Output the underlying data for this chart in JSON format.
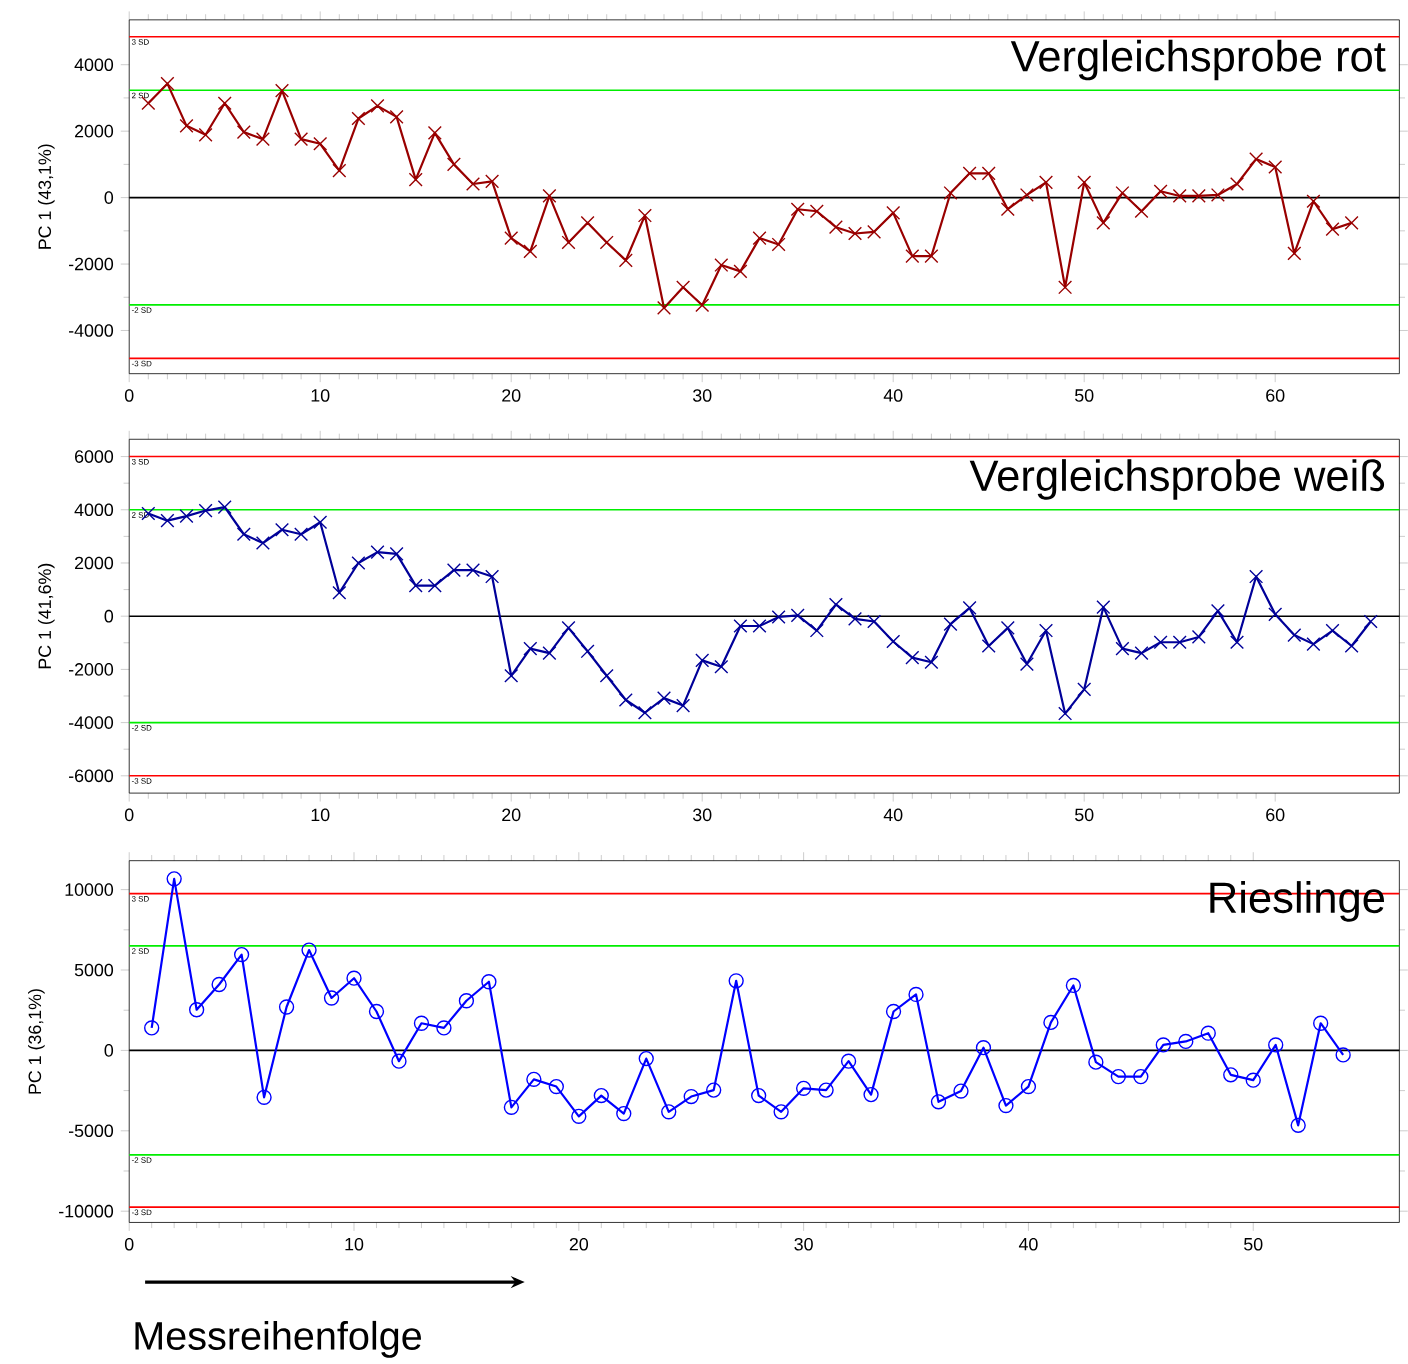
{
  "chart_data": [
    {
      "type": "line",
      "title": "Vergleichsprobe rot",
      "ylabel": "PC 1 (43,1%)",
      "marker": "cross",
      "line_style": "solid",
      "x": [
        1,
        2,
        3,
        4,
        5,
        6,
        7,
        8,
        9,
        10,
        11,
        12,
        13,
        14,
        15,
        16,
        17,
        18,
        19,
        20,
        21,
        22,
        23,
        24,
        25,
        26,
        27,
        28,
        29,
        30,
        31,
        32,
        33,
        34,
        35,
        36,
        37,
        38,
        39,
        40,
        41,
        42,
        43,
        44,
        45,
        46,
        47,
        48,
        49,
        50,
        51,
        52,
        53,
        54,
        55,
        56,
        57,
        58,
        59,
        60,
        61,
        62,
        63,
        64
      ],
      "series": [
        {
          "color": "#990000",
          "values": [
            2840,
            3430,
            2160,
            1890,
            2840,
            1970,
            1760,
            3220,
            1760,
            1620,
            810,
            2380,
            2760,
            2430,
            540,
            1950,
            1000,
            410,
            490,
            -1220,
            -1620,
            50,
            -1350,
            -760,
            -1350,
            -1890,
            -540,
            -3320,
            -2700,
            -3240,
            -2030,
            -2220,
            -1220,
            -1410,
            -350,
            -410,
            -890,
            -1080,
            -1030,
            -460,
            -1760,
            -1760,
            140,
            730,
            730,
            -350,
            80,
            460,
            -2700,
            460,
            -760,
            140,
            -410,
            190,
            50,
            50,
            80,
            410,
            1160,
            920,
            -1680,
            -110,
            -950,
            -760
          ]
        }
      ],
      "xlim": [
        0,
        66.5
      ],
      "ylim": [
        -5300,
        5350
      ],
      "xticks": [
        0,
        10,
        20,
        30,
        40,
        50,
        60
      ],
      "yticks": [
        -4000,
        -2000,
        0,
        2000,
        4000
      ],
      "ref_lines": [
        {
          "axis": "y",
          "value": 4840,
          "label": "3 SD",
          "color": "#ff0000"
        },
        {
          "axis": "y",
          "value": 3230,
          "label": "2 SD",
          "color": "#00ee00"
        },
        {
          "axis": "y",
          "value": 0,
          "color": "#000000"
        },
        {
          "axis": "y",
          "value": -3230,
          "label": "-2 SD",
          "color": "#00ee00"
        },
        {
          "axis": "y",
          "value": -4840,
          "label": "-3 SD",
          "color": "#ff0000"
        }
      ]
    },
    {
      "type": "line",
      "title": "Vergleichsprobe weiß",
      "ylabel": "PC 1 (41,6%)",
      "marker": "cross",
      "line_style": "solid",
      "x": [
        1,
        2,
        3,
        4,
        5,
        6,
        7,
        8,
        9,
        10,
        11,
        12,
        13,
        14,
        15,
        16,
        17,
        18,
        19,
        20,
        21,
        22,
        23,
        24,
        25,
        26,
        27,
        28,
        29,
        30,
        31,
        32,
        33,
        34,
        35,
        36,
        37,
        38,
        39,
        40,
        41,
        42,
        43,
        44,
        45,
        46,
        47,
        48,
        49,
        50,
        51,
        52,
        53,
        54,
        55,
        56,
        57,
        58,
        59,
        60,
        61,
        62,
        63,
        64,
        65
      ],
      "series": [
        {
          "color": "#000099",
          "values": [
            3860,
            3590,
            3760,
            3970,
            4100,
            3080,
            2750,
            3250,
            3080,
            3530,
            880,
            2000,
            2410,
            2340,
            1150,
            1150,
            1730,
            1730,
            1490,
            -2240,
            -1220,
            -1390,
            -440,
            -1320,
            -2240,
            -3150,
            -3630,
            -3080,
            -3360,
            -1660,
            -1900,
            -370,
            -370,
            -30,
            30,
            -540,
            440,
            -100,
            -200,
            -950,
            -1560,
            -1730,
            -300,
            310,
            -1120,
            -440,
            -1800,
            -540,
            -3660,
            -2750,
            340,
            -1220,
            -1390,
            -980,
            -980,
            -780,
            200,
            -980,
            1490,
            70,
            -710,
            -1050,
            -540,
            -1120,
            -200
          ]
        }
      ],
      "xlim": [
        0,
        66.5
      ],
      "ylim": [
        -6650,
        6650
      ],
      "xticks": [
        0,
        10,
        20,
        30,
        40,
        50,
        60
      ],
      "yticks": [
        -6000,
        -4000,
        -2000,
        0,
        2000,
        4000,
        6000
      ],
      "ref_lines": [
        {
          "axis": "y",
          "value": 6000,
          "label": "3 SD",
          "color": "#ff0000"
        },
        {
          "axis": "y",
          "value": 4000,
          "label": "2 SD",
          "color": "#00ee00"
        },
        {
          "axis": "y",
          "value": 0,
          "color": "#000000"
        },
        {
          "axis": "y",
          "value": -4000,
          "label": "-2 SD",
          "color": "#00ee00"
        },
        {
          "axis": "y",
          "value": -6000,
          "label": "-3 SD",
          "color": "#ff0000"
        }
      ]
    },
    {
      "type": "line",
      "title": "Rieslinge",
      "ylabel": "PC 1 (36,1%)",
      "xlabel": "Messreihenfolge",
      "marker": "circle",
      "line_style": "solid",
      "x": [
        1,
        2,
        3,
        4,
        5,
        6,
        7,
        8,
        9,
        10,
        11,
        12,
        13,
        14,
        15,
        16,
        17,
        18,
        19,
        20,
        21,
        22,
        23,
        24,
        25,
        26,
        27,
        28,
        29,
        30,
        31,
        32,
        33,
        34,
        35,
        36,
        37,
        38,
        39,
        40,
        41,
        42,
        43,
        44,
        45,
        46,
        47,
        48,
        49,
        50,
        51,
        52,
        53,
        54
      ],
      "series": [
        {
          "color": "#0000ff",
          "values": [
            1400,
            10670,
            2530,
            4100,
            5960,
            -2920,
            2700,
            6240,
            3260,
            4490,
            2420,
            -670,
            1690,
            1400,
            3090,
            4270,
            -3540,
            -1800,
            -2250,
            -4100,
            -2810,
            -3930,
            -510,
            -3820,
            -2870,
            -2470,
            4330,
            -2810,
            -3820,
            -2360,
            -2470,
            -670,
            -2750,
            2420,
            3480,
            -3200,
            -2530,
            170,
            -3430,
            -2250,
            1740,
            4040,
            -730,
            -1630,
            -1630,
            340,
            560,
            1070,
            -1520,
            -1850,
            340,
            -4660,
            1690,
            -280
          ]
        }
      ],
      "xlim": [
        0,
        56.5
      ],
      "ylim": [
        -10700,
        11800
      ],
      "xticks": [
        0,
        10,
        20,
        30,
        40,
        50
      ],
      "yticks": [
        -10000,
        -5000,
        0,
        5000,
        10000
      ],
      "ref_lines": [
        {
          "axis": "y",
          "value": 9750,
          "label": "3 SD",
          "color": "#ff0000"
        },
        {
          "axis": "y",
          "value": 6500,
          "label": "2 SD",
          "color": "#00ee00"
        },
        {
          "axis": "y",
          "value": 0,
          "color": "#000000"
        },
        {
          "axis": "y",
          "value": -6500,
          "label": "-2 SD",
          "color": "#00ee00"
        },
        {
          "axis": "y",
          "value": -9750,
          "label": "-3 SD",
          "color": "#ff0000"
        }
      ]
    }
  ]
}
